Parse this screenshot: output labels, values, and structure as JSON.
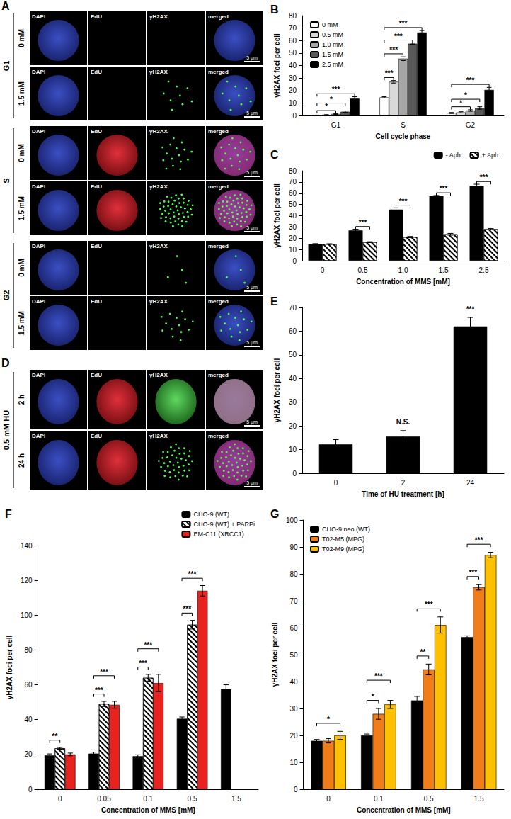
{
  "micrographs": [
    {
      "title": "A",
      "columns": [
        "DAPI",
        "EdU",
        "γH2AX",
        "merged"
      ],
      "rows": [
        {
          "group": "G1",
          "label": "0 mM",
          "scale_bar": "5 μm"
        },
        {
          "group": "G1",
          "label": "1.5 mM",
          "scale_bar": "5 μm"
        },
        {
          "group": "S",
          "label": "0 mM",
          "scale_bar": "5 μm"
        },
        {
          "group": "S",
          "label": "1.5 mM",
          "scale_bar": "5 μm"
        },
        {
          "group": "G2",
          "label": "0 mM",
          "scale_bar": "5 μm"
        },
        {
          "group": "G2",
          "label": "1.5 mM",
          "scale_bar": "5 μm"
        }
      ]
    },
    {
      "title": "D",
      "columns": [
        "DAPI",
        "EdU",
        "γH2AX",
        "merged"
      ],
      "rows": [
        {
          "group": "0.5 mM HU",
          "label": "2 h",
          "scale_bar": "5 μm"
        },
        {
          "group": "0.5 mM HU",
          "label": "24 h",
          "scale_bar": "5 μm"
        }
      ]
    }
  ],
  "chart_data": [
    {
      "title": "B",
      "type": "bar",
      "x_label": "Cell cycle phase",
      "y_label": "γH2AX foci per cell",
      "categories": [
        "G1",
        "S",
        "G2"
      ],
      "series": [
        {
          "name": "0 mM",
          "color": "#ffffff",
          "values": [
            0.2,
            14.5,
            2.0
          ],
          "errors": [
            0.1,
            0.5,
            0.4
          ]
        },
        {
          "name": "0.5 mM",
          "color": "#d9d9d9",
          "values": [
            0.5,
            27.0,
            2.5
          ],
          "errors": [
            0.2,
            1.0,
            0.5
          ]
        },
        {
          "name": "1.0 mM",
          "color": "#a6a6a6",
          "values": [
            1.2,
            45.5,
            4.0
          ],
          "errors": [
            0.3,
            1.5,
            0.6
          ]
        },
        {
          "name": "1.5 mM",
          "color": "#595959",
          "values": [
            3.0,
            57.5,
            6.0
          ],
          "errors": [
            0.6,
            0.5,
            1.0
          ]
        },
        {
          "name": "2.5 mM",
          "color": "#000000",
          "values": [
            13.5,
            66.5,
            20.5
          ],
          "errors": [
            1.5,
            1.5,
            2.0
          ]
        }
      ],
      "ylim": [
        0,
        80
      ],
      "yticks": [
        0,
        10,
        20,
        30,
        40,
        50,
        60,
        70,
        80
      ],
      "grid": false,
      "legend": "upper left",
      "annotations": [
        {
          "category": "G1",
          "from": "0 mM",
          "to": "1.0 mM",
          "label": "*"
        },
        {
          "category": "G1",
          "from": "0 mM",
          "to": "1.5 mM",
          "label": "*"
        },
        {
          "category": "G1",
          "from": "0 mM",
          "to": "2.5 mM",
          "label": "***"
        },
        {
          "category": "S",
          "from": "0 mM",
          "to": "0.5 mM",
          "label": "***"
        },
        {
          "category": "S",
          "from": "0 mM",
          "to": "1.0 mM",
          "label": "***"
        },
        {
          "category": "S",
          "from": "0 mM",
          "to": "1.5 mM",
          "label": "***"
        },
        {
          "category": "S",
          "from": "0 mM",
          "to": "2.5 mM",
          "label": "***"
        },
        {
          "category": "G2",
          "from": "0 mM",
          "to": "1.0 mM",
          "label": "*"
        },
        {
          "category": "G2",
          "from": "0 mM",
          "to": "1.5 mM",
          "label": "*"
        },
        {
          "category": "G2",
          "from": "0 mM",
          "to": "2.5 mM",
          "label": "***"
        }
      ]
    },
    {
      "title": "C",
      "type": "bar",
      "x_label": "Concentration of MMS [mM]",
      "y_label": "γH2AX foci per cell",
      "categories": [
        "0",
        "0.5",
        "1.0",
        "1.5",
        "2.5"
      ],
      "series": [
        {
          "name": "- Aph.",
          "color": "#000000",
          "values": [
            14.8,
            27.0,
            45.5,
            57.5,
            66.5
          ],
          "errors": [
            0.4,
            1.0,
            1.5,
            0.5,
            1.5
          ]
        },
        {
          "name": "+ Aph.",
          "color": "#ffffff",
          "values": [
            14.8,
            16.5,
            21.0,
            23.5,
            28.0
          ],
          "errors": [
            0.3,
            0.4,
            0.6,
            0.8,
            0.6
          ]
        }
      ],
      "ylim": [
        0,
        80
      ],
      "yticks": [
        0,
        10,
        20,
        30,
        40,
        50,
        60,
        70,
        80
      ],
      "grid": false,
      "legend": "upper right",
      "annotations": [
        {
          "category": "0.5",
          "from": "- Aph.",
          "to": "+ Aph.",
          "label": "***"
        },
        {
          "category": "1.0",
          "from": "- Aph.",
          "to": "+ Aph.",
          "label": "***"
        },
        {
          "category": "1.5",
          "from": "- Aph.",
          "to": "+ Aph.",
          "label": "***"
        },
        {
          "category": "2.5",
          "from": "- Aph.",
          "to": "+ Aph.",
          "label": "***"
        }
      ]
    },
    {
      "title": "E",
      "type": "bar",
      "x_label": "Time of HU treatment [h]",
      "y_label": "γH2AX foci per cell",
      "categories": [
        "0",
        "2",
        "24"
      ],
      "values": [
        12.2,
        15.5,
        62.0
      ],
      "errors": [
        2.0,
        2.5,
        3.8
      ],
      "color": "#000000",
      "ylim": [
        0,
        70
      ],
      "yticks": [
        0,
        10,
        20,
        30,
        40,
        50,
        60,
        70
      ],
      "grid": false,
      "annotations": [
        {
          "category": "2",
          "label": "N.S."
        },
        {
          "category": "24",
          "label": "***"
        }
      ]
    },
    {
      "title": "F",
      "type": "bar",
      "x_label": "Concentration of MMS [mM]",
      "y_label": "γH2AX foci per cell",
      "categories": [
        "0",
        "0.05",
        "0.1",
        "0.5",
        "1.5"
      ],
      "series": [
        {
          "name": "CHO-9 (WT)",
          "color": "#000000",
          "values": [
            19.5,
            20.5,
            19.0,
            40.5,
            57.5
          ],
          "errors": [
            0.8,
            0.8,
            0.8,
            1.0,
            2.5
          ]
        },
        {
          "name": "CHO-9 (WT) + PARPi",
          "color": "#ffffff",
          "values": [
            23.5,
            49.0,
            64.0,
            94.5,
            null
          ],
          "errors": [
            0.5,
            1.5,
            2.0,
            2.5,
            null
          ]
        },
        {
          "name": "EM-C11 (XRCC1)",
          "color": "#e8231f",
          "values": [
            20.0,
            48.5,
            61.0,
            114.0,
            null
          ],
          "errors": [
            0.8,
            2.0,
            5.0,
            3.0,
            null
          ]
        }
      ],
      "ylim": [
        0,
        140
      ],
      "yticks": [
        0,
        20,
        40,
        60,
        80,
        100,
        120,
        140
      ],
      "grid": false,
      "legend": "upper right",
      "annotations": [
        {
          "category": "0",
          "from": "CHO-9 (WT)",
          "to": "CHO-9 (WT) + PARPi",
          "label": "**"
        },
        {
          "category": "0.05",
          "from": "CHO-9 (WT)",
          "to": "CHO-9 (WT) + PARPi",
          "label": "***"
        },
        {
          "category": "0.05",
          "from": "CHO-9 (WT)",
          "to": "EM-C11 (XRCC1)",
          "label": "***"
        },
        {
          "category": "0.1",
          "from": "CHO-9 (WT)",
          "to": "CHO-9 (WT) + PARPi",
          "label": "***"
        },
        {
          "category": "0.1",
          "from": "CHO-9 (WT)",
          "to": "EM-C11 (XRCC1)",
          "label": "***"
        },
        {
          "category": "0.5",
          "from": "CHO-9 (WT)",
          "to": "CHO-9 (WT) + PARPi",
          "label": "***"
        },
        {
          "category": "0.5",
          "from": "CHO-9 (WT)",
          "to": "EM-C11 (XRCC1)",
          "label": "***"
        }
      ]
    },
    {
      "title": "G",
      "type": "bar",
      "x_label": "Concentration of MMS [mM]",
      "y_label": "γH2AX foci per cell",
      "categories": [
        "0",
        "0.1",
        "0.5",
        "1.5"
      ],
      "series": [
        {
          "name": "CHO-9 neo (WT)",
          "color": "#000000",
          "values": [
            18.0,
            20.0,
            33.0,
            56.5
          ],
          "errors": [
            0.5,
            0.5,
            1.5,
            0.5
          ]
        },
        {
          "name": "T02-M5 (MPG)",
          "color": "#f07d1a",
          "values": [
            18.0,
            28.0,
            44.5,
            75.0
          ],
          "errors": [
            0.8,
            2.0,
            2.0,
            1.0
          ]
        },
        {
          "name": "T02-M9 (MPG)",
          "color": "#ffc000",
          "values": [
            20.0,
            31.5,
            61.0,
            87.0
          ],
          "errors": [
            1.5,
            1.5,
            3.0,
            1.0
          ]
        }
      ],
      "ylim": [
        0,
        100
      ],
      "yticks": [
        0,
        10,
        20,
        30,
        40,
        50,
        60,
        70,
        80,
        90,
        100
      ],
      "grid": false,
      "legend": "upper left",
      "annotations": [
        {
          "category": "0",
          "from": "CHO-9 neo (WT)",
          "to": "T02-M9 (MPG)",
          "label": "*"
        },
        {
          "category": "0.1",
          "from": "CHO-9 neo (WT)",
          "to": "T02-M5 (MPG)",
          "label": "*"
        },
        {
          "category": "0.1",
          "from": "CHO-9 neo (WT)",
          "to": "T02-M9 (MPG)",
          "label": "***"
        },
        {
          "category": "0.5",
          "from": "CHO-9 neo (WT)",
          "to": "T02-M5 (MPG)",
          "label": "**"
        },
        {
          "category": "0.5",
          "from": "CHO-9 neo (WT)",
          "to": "T02-M9 (MPG)",
          "label": "***"
        },
        {
          "category": "1.5",
          "from": "CHO-9 neo (WT)",
          "to": "T02-M5 (MPG)",
          "label": "***"
        },
        {
          "category": "1.5",
          "from": "CHO-9 neo (WT)",
          "to": "T02-M9 (MPG)",
          "label": "***"
        }
      ]
    }
  ]
}
